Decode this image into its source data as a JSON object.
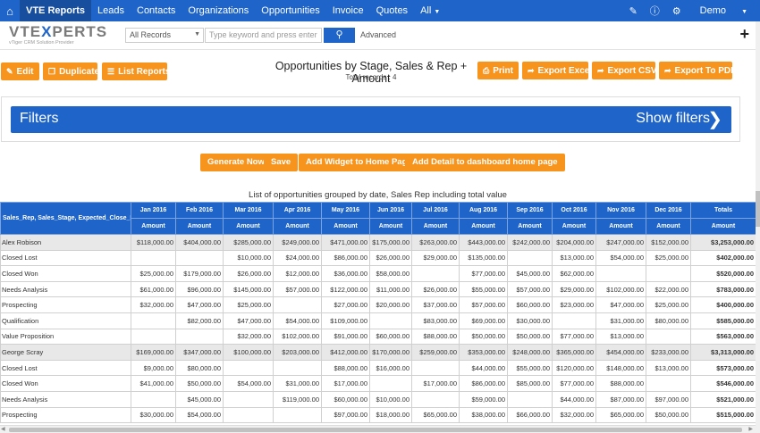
{
  "nav": {
    "items": [
      "VTE Reports",
      "Leads",
      "Contacts",
      "Organizations",
      "Opportunities",
      "Invoice",
      "Quotes",
      "All"
    ],
    "user": "Demo"
  },
  "logo": {
    "line1a": "VTE",
    "line1b": "X",
    "line1c": "PERTS",
    "line2": "vTiger CRM Solution Provider"
  },
  "search": {
    "select_value": "All Records",
    "placeholder": "Type keyword and press enter",
    "advanced": "Advanced"
  },
  "toolbar": {
    "edit": "Edit",
    "duplicate": "Duplicate",
    "list_reports": "List Reports",
    "print": "Print",
    "export_excel": "Export Excel",
    "export_csv": "Export CSV",
    "export_pdf": "Export To PDF"
  },
  "report": {
    "title": "Opportunities by Stage, Sales & Rep + Amount",
    "total_records": "Total records : 4"
  },
  "filters": {
    "title": "Filters",
    "show": "Show filters"
  },
  "actions": {
    "generate": "Generate Now",
    "save": "Save",
    "add_widget": "Add Widget to Home Page",
    "add_detail": "Add Detail to dashboard home page"
  },
  "table": {
    "caption": "List of opportunities grouped by date, Sales Rep including total value",
    "first_header": "Sales_Rep, Sales_Stage, Expected_Close_Date",
    "months": [
      "Jan 2016",
      "Feb 2016",
      "Mar 2016",
      "Apr 2016",
      "May 2016",
      "Jun 2016",
      "Jul 2016",
      "Aug 2016",
      "Sep 2016",
      "Oct 2016",
      "Nov 2016",
      "Dec 2016",
      "Totals"
    ],
    "sub_header": "Amount",
    "rows": [
      {
        "label": "Alex Robison",
        "group": true,
        "cells": [
          "$118,000.00",
          "$404,000.00",
          "$285,000.00",
          "$249,000.00",
          "$471,000.00",
          "$175,000.00",
          "$263,000.00",
          "$443,000.00",
          "$242,000.00",
          "$204,000.00",
          "$247,000.00",
          "$152,000.00",
          "$3,253,000.00"
        ]
      },
      {
        "label": "Closed Lost",
        "group": false,
        "cells": [
          "",
          "",
          "$10,000.00",
          "$24,000.00",
          "$86,000.00",
          "$26,000.00",
          "$29,000.00",
          "$135,000.00",
          "",
          "$13,000.00",
          "$54,000.00",
          "$25,000.00",
          "$402,000.00"
        ]
      },
      {
        "label": "Closed Won",
        "group": false,
        "cells": [
          "$25,000.00",
          "$179,000.00",
          "$26,000.00",
          "$12,000.00",
          "$36,000.00",
          "$58,000.00",
          "",
          "$77,000.00",
          "$45,000.00",
          "$62,000.00",
          "",
          "",
          "$520,000.00"
        ]
      },
      {
        "label": "Needs Analysis",
        "group": false,
        "cells": [
          "$61,000.00",
          "$96,000.00",
          "$145,000.00",
          "$57,000.00",
          "$122,000.00",
          "$11,000.00",
          "$26,000.00",
          "$55,000.00",
          "$57,000.00",
          "$29,000.00",
          "$102,000.00",
          "$22,000.00",
          "$783,000.00"
        ]
      },
      {
        "label": "Prospecting",
        "group": false,
        "cells": [
          "$32,000.00",
          "$47,000.00",
          "$25,000.00",
          "",
          "$27,000.00",
          "$20,000.00",
          "$37,000.00",
          "$57,000.00",
          "$60,000.00",
          "$23,000.00",
          "$47,000.00",
          "$25,000.00",
          "$400,000.00"
        ]
      },
      {
        "label": "Qualification",
        "group": false,
        "cells": [
          "",
          "$82,000.00",
          "$47,000.00",
          "$54,000.00",
          "$109,000.00",
          "",
          "$83,000.00",
          "$69,000.00",
          "$30,000.00",
          "",
          "$31,000.00",
          "$80,000.00",
          "$585,000.00"
        ]
      },
      {
        "label": "Value Proposition",
        "group": false,
        "cells": [
          "",
          "",
          "$32,000.00",
          "$102,000.00",
          "$91,000.00",
          "$60,000.00",
          "$88,000.00",
          "$50,000.00",
          "$50,000.00",
          "$77,000.00",
          "$13,000.00",
          "",
          "$563,000.00"
        ]
      },
      {
        "label": "George Scray",
        "group": true,
        "cells": [
          "$169,000.00",
          "$347,000.00",
          "$100,000.00",
          "$203,000.00",
          "$412,000.00",
          "$170,000.00",
          "$259,000.00",
          "$353,000.00",
          "$248,000.00",
          "$365,000.00",
          "$454,000.00",
          "$233,000.00",
          "$3,313,000.00"
        ]
      },
      {
        "label": "Closed Lost",
        "group": false,
        "cells": [
          "$9,000.00",
          "$80,000.00",
          "",
          "",
          "$88,000.00",
          "$16,000.00",
          "",
          "$44,000.00",
          "$55,000.00",
          "$120,000.00",
          "$148,000.00",
          "$13,000.00",
          "$573,000.00"
        ]
      },
      {
        "label": "Closed Won",
        "group": false,
        "cells": [
          "$41,000.00",
          "$50,000.00",
          "$54,000.00",
          "$31,000.00",
          "$17,000.00",
          "",
          "$17,000.00",
          "$86,000.00",
          "$85,000.00",
          "$77,000.00",
          "$88,000.00",
          "",
          "$546,000.00"
        ]
      },
      {
        "label": "Needs Analysis",
        "group": false,
        "cells": [
          "",
          "$45,000.00",
          "",
          "$119,000.00",
          "$60,000.00",
          "$10,000.00",
          "",
          "$59,000.00",
          "",
          "$44,000.00",
          "$87,000.00",
          "$97,000.00",
          "$521,000.00"
        ]
      },
      {
        "label": "Prospecting",
        "group": false,
        "cells": [
          "$30,000.00",
          "$54,000.00",
          "",
          "",
          "$97,000.00",
          "$18,000.00",
          "$65,000.00",
          "$38,000.00",
          "$66,000.00",
          "$32,000.00",
          "$65,000.00",
          "$50,000.00",
          "$515,000.00"
        ]
      }
    ]
  }
}
